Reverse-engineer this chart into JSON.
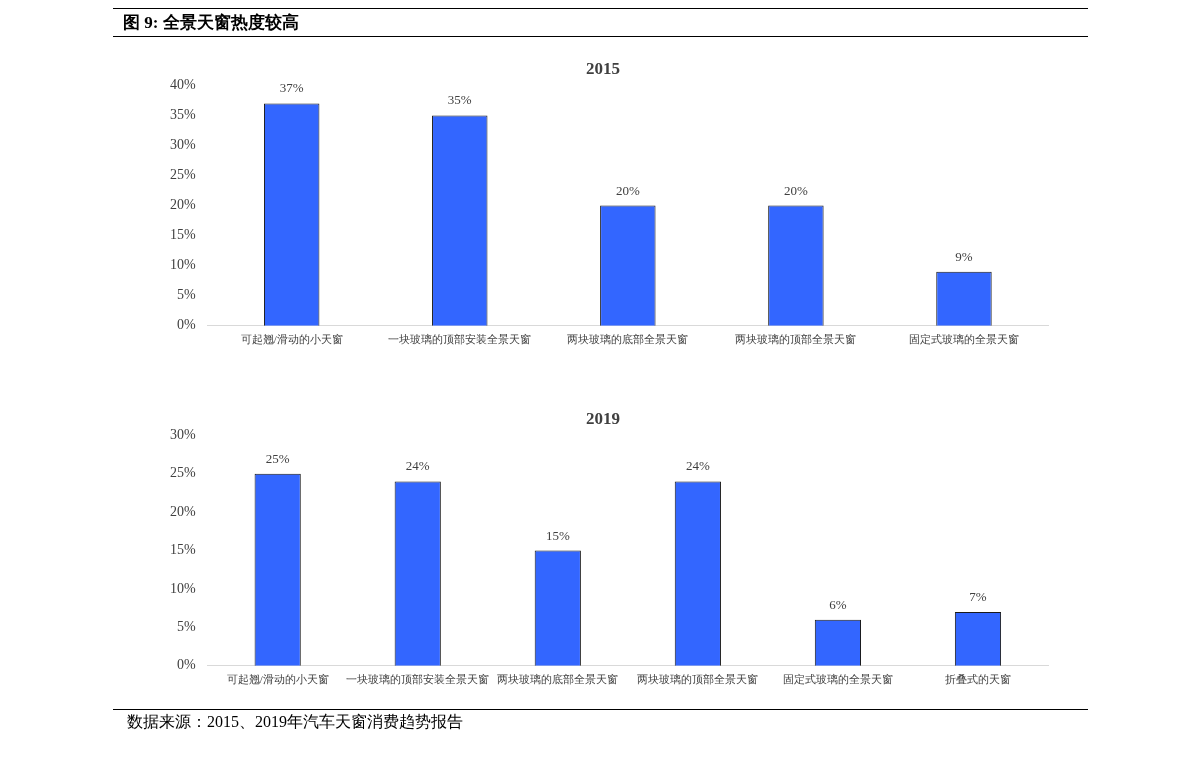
{
  "chart_data": [
    {
      "type": "bar",
      "title": "2015",
      "annotations": [
        "图 9:  全景天窗热度较高"
      ],
      "categories": [
        "可起翘/滑动的小天窗",
        "一块玻璃的顶部安装全景天窗",
        "两块玻璃的底部全景天窗",
        "两块玻璃的顶部全景天窗",
        "固定式玻璃的全景天窗"
      ],
      "values": [
        0.37,
        0.35,
        0.2,
        0.2,
        0.09
      ],
      "value_labels": [
        "37%",
        "35%",
        "20%",
        "20%",
        "9%"
      ],
      "color": "#3366ff",
      "ylim": [
        0,
        0.4
      ],
      "yticks": [
        {
          "value": 0,
          "label": "0%"
        },
        {
          "value": 0.05,
          "label": "5%"
        },
        {
          "value": 0.1,
          "label": "10%"
        },
        {
          "value": 0.15,
          "label": "15%"
        },
        {
          "value": 0.2,
          "label": "20%"
        },
        {
          "value": 0.25,
          "label": "25%"
        },
        {
          "value": 0.3,
          "label": "30%"
        },
        {
          "value": 0.35,
          "label": "35%"
        },
        {
          "value": 0.4,
          "label": "40%"
        }
      ],
      "grid": false,
      "legend": false
    },
    {
      "type": "bar",
      "title": "2019",
      "annotations": [
        "数据来源：2015、2019年汽车天窗消费趋势报告"
      ],
      "categories": [
        "可起翘/滑动的小天窗",
        "一块玻璃的顶部安装全景天窗",
        "两块玻璃的底部全景天窗",
        "两块玻璃的顶部全景天窗",
        "固定式玻璃的全景天窗",
        "折叠式的天窗"
      ],
      "values": [
        0.25,
        0.24,
        0.15,
        0.24,
        0.06,
        0.07
      ],
      "value_labels": [
        "25%",
        "24%",
        "15%",
        "24%",
        "6%",
        "7%"
      ],
      "color": "#3366ff",
      "ylim": [
        0,
        0.3
      ],
      "yticks": [
        {
          "value": 0,
          "label": "0%"
        },
        {
          "value": 0.05,
          "label": "5%"
        },
        {
          "value": 0.1,
          "label": "10%"
        },
        {
          "value": 0.15,
          "label": "15%"
        },
        {
          "value": 0.2,
          "label": "20%"
        },
        {
          "value": 0.25,
          "label": "25%"
        },
        {
          "value": 0.3,
          "label": "30%"
        }
      ],
      "grid": false,
      "legend": false
    }
  ]
}
